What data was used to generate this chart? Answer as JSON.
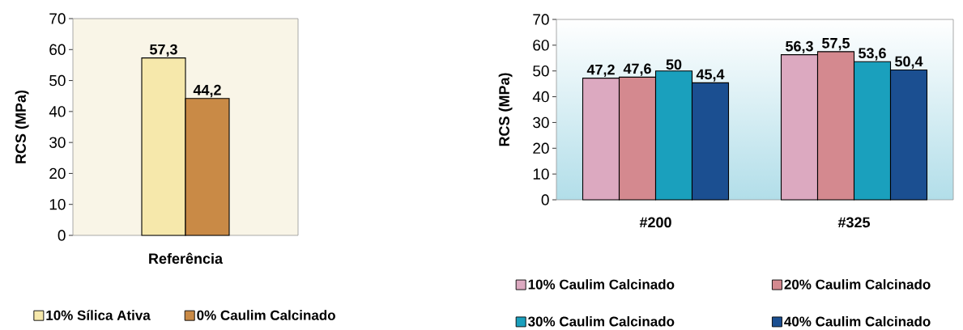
{
  "chart_data": [
    {
      "type": "bar",
      "ylabel": "RCS (MPa)",
      "categories": [
        "Referência"
      ],
      "ylim": [
        0,
        70
      ],
      "yticks": [
        0,
        10,
        20,
        30,
        40,
        50,
        60,
        70
      ],
      "legend": "bottom",
      "series": [
        {
          "name": "10% Sílica Ativa",
          "color": "#f6e8ab",
          "values": [
            57.3
          ],
          "value_labels": [
            "57,3"
          ]
        },
        {
          "name": "0% Caulim Calcinado",
          "color": "#c98a46",
          "values": [
            44.2
          ],
          "value_labels": [
            "44,2"
          ]
        }
      ]
    },
    {
      "type": "bar",
      "ylabel": "RCS (MPa)",
      "categories": [
        "#200",
        "#325"
      ],
      "ylim": [
        0,
        70
      ],
      "yticks": [
        0,
        10,
        20,
        30,
        40,
        50,
        60,
        70
      ],
      "legend": "bottom",
      "series": [
        {
          "name": "10% Caulim Calcinado",
          "color": "#dca9c0",
          "values": [
            47.2,
            56.3
          ],
          "value_labels": [
            "47,2",
            "56,3"
          ]
        },
        {
          "name": "20% Caulim Calcinado",
          "color": "#d4898f",
          "values": [
            47.6,
            57.5
          ],
          "value_labels": [
            "47,6",
            "57,5"
          ]
        },
        {
          "name": "30% Caulim Calcinado",
          "color": "#1aa0bd",
          "values": [
            50,
            53.6
          ],
          "value_labels": [
            "50",
            "53,6"
          ]
        },
        {
          "name": "40% Caulim Calcinado",
          "color": "#1b4f91",
          "values": [
            45.4,
            50.4
          ],
          "value_labels": [
            "45,4",
            "50,4"
          ]
        }
      ]
    }
  ]
}
